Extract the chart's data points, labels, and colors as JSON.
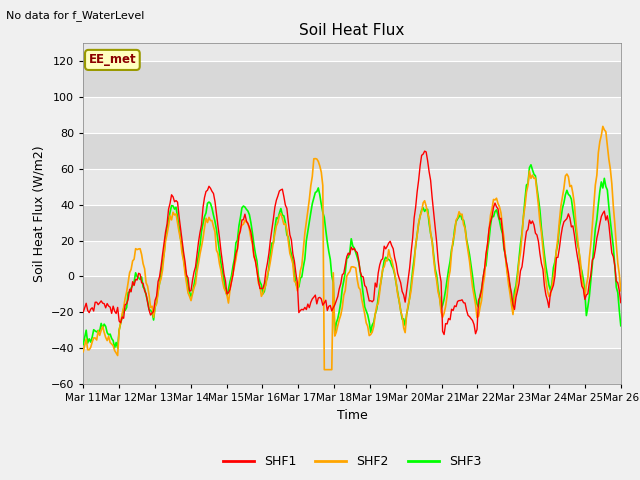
{
  "title": "Soil Heat Flux",
  "xlabel": "Time",
  "ylabel": "Soil Heat Flux (W/m2)",
  "no_data_text": "No data for f_WaterLevel",
  "station_label": "EE_met",
  "ylim": [
    -60,
    130
  ],
  "yticks": [
    -60,
    -40,
    -20,
    0,
    20,
    40,
    60,
    80,
    100,
    120
  ],
  "x_tick_labels": [
    "Mar 11",
    "Mar 12",
    "Mar 13",
    "Mar 14",
    "Mar 15",
    "Mar 16",
    "Mar 17",
    "Mar 18",
    "Mar 19",
    "Mar 20",
    "Mar 21",
    "Mar 22",
    "Mar 23",
    "Mar 24",
    "Mar 25",
    "Mar 26"
  ],
  "colors": {
    "SHF1": "red",
    "SHF2": "orange",
    "SHF3": "lime"
  },
  "background_color": "#f0f0f0",
  "plot_bg_color": "#e8e8e8",
  "band_color_light": "#e8e8e8",
  "band_color_dark": "#d8d8d8",
  "n_points": 360,
  "legend_entries": [
    "SHF1",
    "SHF2",
    "SHF3"
  ]
}
